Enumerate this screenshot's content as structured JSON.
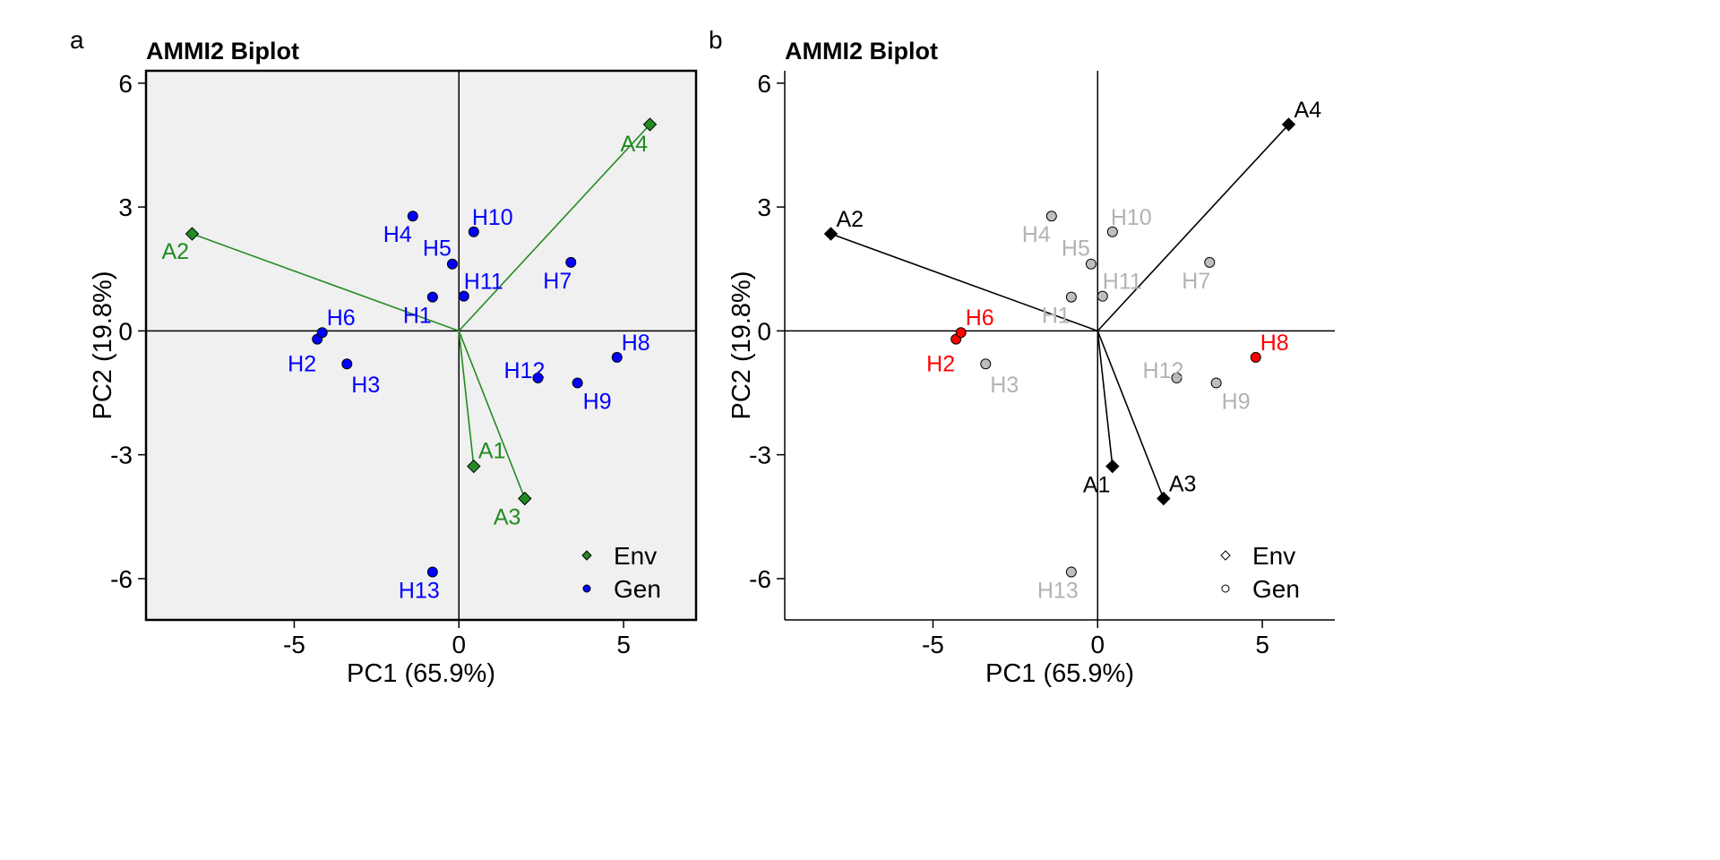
{
  "figure": {
    "panels": [
      {
        "letter": "a",
        "style": "colored"
      },
      {
        "letter": "b",
        "style": "highlight"
      }
    ]
  },
  "colors": {
    "panel_a_background": "#f0f0f0",
    "env_a": "#228b22",
    "gen_a": "#0000ff",
    "env_b": "#000000",
    "gen_b_text": "#b3b3b3",
    "gen_b_fill": "#bebebe",
    "highlight": "#ff0000"
  },
  "chart_data": [
    {
      "type": "scatter",
      "title": "AMMI2 Biplot",
      "xlabel": "PC1 (65.9%)",
      "ylabel": "PC2 (19.8%)",
      "xlim": [
        -9.5,
        7.2
      ],
      "ylim": [
        -7.0,
        6.3
      ],
      "xticks": [
        -5,
        0,
        5
      ],
      "yticks": [
        -6,
        -3,
        0,
        3,
        6
      ],
      "grid": false,
      "legend_position": "bottom-right",
      "legend": [
        {
          "label": "Env",
          "marker": "diamond"
        },
        {
          "label": "Gen",
          "marker": "circle"
        }
      ],
      "environments": [
        {
          "name": "A1",
          "x": 0.45,
          "y": -3.28
        },
        {
          "name": "A2",
          "x": -8.1,
          "y": 2.35
        },
        {
          "name": "A3",
          "x": 2.0,
          "y": -4.06
        },
        {
          "name": "A4",
          "x": 5.8,
          "y": 5.0
        }
      ],
      "genotypes": [
        {
          "name": "H1",
          "x": -0.8,
          "y": 0.82
        },
        {
          "name": "H2",
          "x": -4.3,
          "y": -0.2
        },
        {
          "name": "H3",
          "x": -3.4,
          "y": -0.8
        },
        {
          "name": "H4",
          "x": -1.4,
          "y": 2.78
        },
        {
          "name": "H5",
          "x": -0.2,
          "y": 1.62
        },
        {
          "name": "H6",
          "x": -4.15,
          "y": -0.04
        },
        {
          "name": "H7",
          "x": 3.4,
          "y": 1.66
        },
        {
          "name": "H8",
          "x": 4.8,
          "y": -0.64
        },
        {
          "name": "H9",
          "x": 3.6,
          "y": -1.26
        },
        {
          "name": "H10",
          "x": 0.45,
          "y": 2.4
        },
        {
          "name": "H11",
          "x": 0.15,
          "y": 0.84
        },
        {
          "name": "H12",
          "x": 2.4,
          "y": -1.14
        },
        {
          "name": "H13",
          "x": -0.8,
          "y": -5.84
        }
      ]
    },
    {
      "type": "scatter",
      "title": "AMMI2 Biplot",
      "xlabel": "PC1 (65.9%)",
      "ylabel": "PC2 (19.8%)",
      "xlim": [
        -9.5,
        7.2
      ],
      "ylim": [
        -7.0,
        6.3
      ],
      "xticks": [
        -5,
        0,
        5
      ],
      "yticks": [
        -6,
        -3,
        0,
        3,
        6
      ],
      "grid": false,
      "legend_position": "bottom-right",
      "legend": [
        {
          "label": "Env",
          "marker": "diamond"
        },
        {
          "label": "Gen",
          "marker": "circle"
        }
      ],
      "highlighted": [
        "H2",
        "H6",
        "H8"
      ],
      "environments": [
        {
          "name": "A1",
          "x": 0.45,
          "y": -3.28
        },
        {
          "name": "A2",
          "x": -8.1,
          "y": 2.35
        },
        {
          "name": "A3",
          "x": 2.0,
          "y": -4.06
        },
        {
          "name": "A4",
          "x": 5.8,
          "y": 5.0
        }
      ],
      "genotypes": [
        {
          "name": "H1",
          "x": -0.8,
          "y": 0.82
        },
        {
          "name": "H2",
          "x": -4.3,
          "y": -0.2
        },
        {
          "name": "H3",
          "x": -3.4,
          "y": -0.8
        },
        {
          "name": "H4",
          "x": -1.4,
          "y": 2.78
        },
        {
          "name": "H5",
          "x": -0.2,
          "y": 1.62
        },
        {
          "name": "H6",
          "x": -4.15,
          "y": -0.04
        },
        {
          "name": "H7",
          "x": 3.4,
          "y": 1.66
        },
        {
          "name": "H8",
          "x": 4.8,
          "y": -0.64
        },
        {
          "name": "H9",
          "x": 3.6,
          "y": -1.26
        },
        {
          "name": "H10",
          "x": 0.45,
          "y": 2.4
        },
        {
          "name": "H11",
          "x": 0.15,
          "y": 0.84
        },
        {
          "name": "H12",
          "x": 2.4,
          "y": -1.14
        },
        {
          "name": "H13",
          "x": -0.8,
          "y": -5.84
        }
      ]
    }
  ]
}
